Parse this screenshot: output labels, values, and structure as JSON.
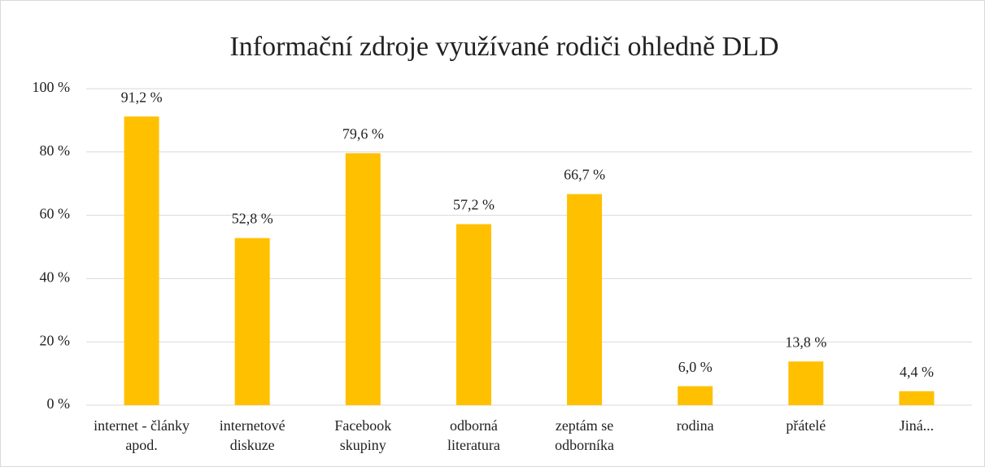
{
  "chart_data": {
    "type": "bar",
    "title": "Informační zdroje využívané rodiči ohledně DLD",
    "categories": [
      "internet - články apod.",
      "internetové diskuze",
      "Facebook skupiny",
      "odborná literatura",
      "zeptám se odborníka",
      "rodina",
      "přátelé",
      "Jiná..."
    ],
    "values": [
      91.2,
      52.8,
      79.6,
      57.2,
      66.7,
      6.0,
      13.8,
      4.4
    ],
    "value_labels": [
      "91,2 %",
      "52,8 %",
      "79,6 %",
      "57,2 %",
      "66,7 %",
      "6,0 %",
      "13,8 %",
      "4,4 %"
    ],
    "color": "#ffc000",
    "ylim": [
      0,
      100
    ],
    "yticks": [
      {
        "value": 0,
        "label": "0 %"
      },
      {
        "value": 20,
        "label": "20 %"
      },
      {
        "value": 40,
        "label": "40 %"
      },
      {
        "value": 60,
        "label": "60 %"
      },
      {
        "value": 80,
        "label": "80 %"
      },
      {
        "value": 100,
        "label": "100 %"
      }
    ],
    "grid": true
  }
}
